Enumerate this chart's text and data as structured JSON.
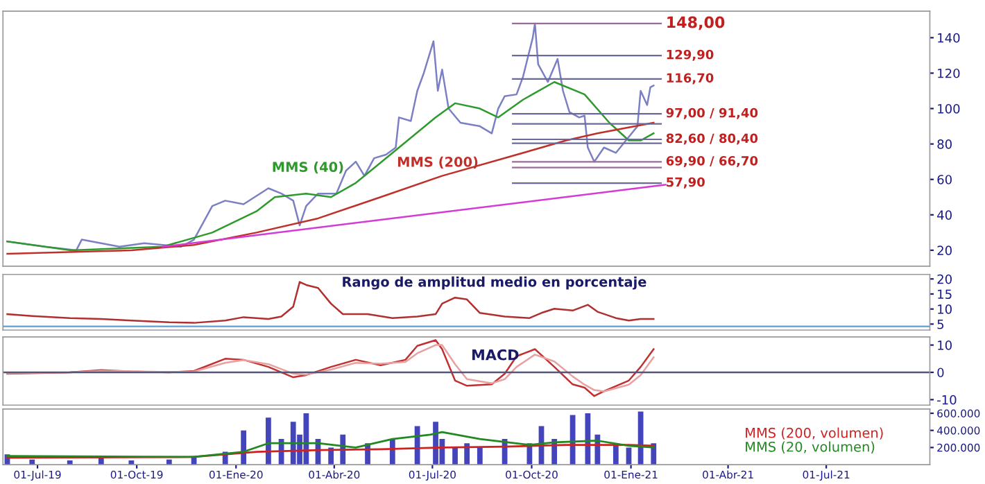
{
  "chart_data": [
    {
      "type": "line",
      "ylim": [
        11,
        155
      ],
      "yticks": [
        20,
        40,
        60,
        80,
        100,
        120,
        140
      ],
      "xlim": [
        "2019-05-30",
        "2021-10-05"
      ],
      "tick_labels": "y",
      "grid": false,
      "legend": false,
      "series": [
        {
          "color": "#7b7fc4",
          "x": [
            "2019-06-03",
            "2019-07-08",
            "2019-08-06",
            "2019-08-11",
            "2019-09-15",
            "2019-10-08",
            "2019-11-11",
            "2019-11-23",
            "2019-12-10",
            "2019-12-22",
            "2020-01-08",
            "2020-01-31",
            "2020-02-12",
            "2020-02-23",
            "2020-02-29",
            "2020-03-06",
            "2020-03-17",
            "2020-04-03",
            "2020-04-12",
            "2020-04-21",
            "2020-04-29",
            "2020-05-08",
            "2020-05-19",
            "2020-05-28",
            "2020-05-31",
            "2020-06-11",
            "2020-06-17",
            "2020-06-23",
            "2020-07-02",
            "2020-07-06",
            "2020-07-10",
            "2020-07-16",
            "2020-07-27",
            "2020-08-14",
            "2020-08-25",
            "2020-08-31",
            "2020-09-06",
            "2020-09-17",
            "2020-09-23",
            "2020-10-02",
            "2020-10-04",
            "2020-10-07",
            "2020-10-16",
            "2020-10-25",
            "2020-10-30",
            "2020-11-05",
            "2020-11-14",
            "2020-11-19",
            "2020-11-22",
            "2020-11-28",
            "2020-12-07",
            "2020-12-18",
            "2020-12-30",
            "2021-01-07",
            "2021-01-10",
            "2021-01-16",
            "2021-01-19",
            "2021-01-22"
          ],
          "values": [
            25,
            22,
            20,
            26,
            22,
            24,
            22,
            26,
            45,
            48,
            46,
            55,
            52,
            48,
            34,
            45,
            52,
            52,
            65,
            70,
            62,
            72,
            74,
            78,
            95,
            93,
            110,
            120,
            138,
            110,
            122,
            100,
            92,
            90,
            86,
            100,
            107,
            108,
            118,
            140,
            148,
            125,
            115,
            128,
            110,
            98,
            95,
            96,
            78,
            70,
            78,
            75,
            84,
            90,
            110,
            102,
            112,
            113
          ]
        },
        {
          "color": "#2e9a2e",
          "x": [
            "2019-06-03",
            "2019-08-01",
            "2019-10-25",
            "2019-12-10",
            "2020-01-20",
            "2020-02-06",
            "2020-03-06",
            "2020-03-29",
            "2020-04-21",
            "2020-05-25",
            "2020-07-04",
            "2020-07-22",
            "2020-08-14",
            "2020-08-31",
            "2020-09-23",
            "2020-10-22",
            "2020-11-19",
            "2020-12-12",
            "2020-12-30",
            "2021-01-10",
            "2021-01-22"
          ],
          "values": [
            25,
            20,
            22,
            30,
            42,
            50,
            52,
            50,
            58,
            75,
            95,
            103,
            100,
            95,
            105,
            115,
            108,
            92,
            82,
            82,
            86
          ]
        },
        {
          "color": "#c0302a",
          "x": [
            "2019-06-03",
            "2019-09-26",
            "2019-11-23",
            "2020-01-20",
            "2020-03-17",
            "2020-05-14",
            "2020-07-10",
            "2020-09-06",
            "2020-11-02",
            "2020-12-01",
            "2021-01-22"
          ],
          "values": [
            18,
            20,
            23,
            30,
            38,
            50,
            62,
            72,
            82,
            86,
            92
          ]
        },
        {
          "color": "#d63ad6",
          "x": [
            "2019-10-25",
            "2021-02-02"
          ],
          "values": [
            22,
            57
          ]
        }
      ],
      "ref_lines": [
        {
          "axis": "y",
          "value": 148,
          "label": "148,00",
          "color": "#9a6a9a"
        },
        {
          "axis": "y",
          "value": 129.9,
          "label": "129,90",
          "color": "#6a6a9a"
        },
        {
          "axis": "y",
          "value": 116.7,
          "label": "116,70",
          "color": "#6a6a9a"
        },
        {
          "axis": "y",
          "value": 97,
          "label": "97,00 / 91,40",
          "color": "#6a6a9a"
        },
        {
          "axis": "y",
          "value": 91.4,
          "label": null,
          "color": "#6a6a9a"
        },
        {
          "axis": "y",
          "value": 82.6,
          "label": "82,60 / 80,40",
          "color": "#6a6a9a"
        },
        {
          "axis": "y",
          "value": 80.4,
          "label": null,
          "color": "#6a6a9a"
        },
        {
          "axis": "y",
          "value": 69.9,
          "label": "69,90 / 66,70",
          "color": "#9a6a9a"
        },
        {
          "axis": "y",
          "value": 66.7,
          "label": null,
          "color": "#9a6a9a"
        },
        {
          "axis": "y",
          "value": 57.9,
          "label": "57,90",
          "color": "#6a6a9a"
        }
      ],
      "annotations": [
        "MMS (40)",
        "MMS (200)"
      ]
    },
    {
      "type": "line",
      "ylim": [
        3,
        21.5
      ],
      "yticks": [
        5,
        10,
        15,
        20
      ],
      "xlim": [
        "2019-05-30",
        "2021-10-05"
      ],
      "tick_labels": "y",
      "grid": false,
      "legend": false,
      "title": "Rango de amplitud medio en porcentaje",
      "series": [
        {
          "color": "#b03030",
          "x": [
            "2019-06-03",
            "2019-06-26",
            "2019-07-31",
            "2019-08-29",
            "2019-09-26",
            "2019-10-31",
            "2019-11-23",
            "2019-12-22",
            "2020-01-08",
            "2020-01-31",
            "2020-02-12",
            "2020-02-23",
            "2020-02-29",
            "2020-03-06",
            "2020-03-17",
            "2020-03-29",
            "2020-04-09",
            "2020-05-02",
            "2020-05-25",
            "2020-06-17",
            "2020-07-04",
            "2020-07-10",
            "2020-07-22",
            "2020-08-02",
            "2020-08-14",
            "2020-09-06",
            "2020-09-29",
            "2020-10-10",
            "2020-10-22",
            "2020-11-08",
            "2020-11-22",
            "2020-12-01",
            "2020-12-18",
            "2020-12-30",
            "2021-01-10",
            "2021-01-22"
          ],
          "values": [
            8.3,
            7.7,
            7,
            6.7,
            6.2,
            5.6,
            5.4,
            6.2,
            7.3,
            6.7,
            7.5,
            10.8,
            19,
            18,
            17,
            11.8,
            8.3,
            8.3,
            7,
            7.5,
            8.3,
            11.8,
            13.8,
            13.2,
            8.7,
            7.5,
            7,
            8.7,
            10.1,
            9.5,
            11.4,
            9.1,
            7,
            6.2,
            6.7,
            6.7
          ]
        }
      ],
      "ref_lines": [
        {
          "axis": "y",
          "value": 4.2,
          "label": null,
          "color": "#66aadd"
        }
      ]
    },
    {
      "type": "line",
      "ylim": [
        -12,
        13
      ],
      "yticks": [
        {
          "value": -10,
          "label": "-10"
        },
        0,
        10
      ],
      "xlim": [
        "2019-05-30",
        "2021-10-05"
      ],
      "tick_labels": "y",
      "grid": false,
      "legend": false,
      "annotations": [
        "MACD"
      ],
      "series": [
        {
          "color": "#c03030",
          "x": [
            "2019-06-03",
            "2019-07-31",
            "2019-08-29",
            "2019-09-26",
            "2019-10-31",
            "2019-11-23",
            "2019-12-22",
            "2020-01-08",
            "2020-01-31",
            "2020-02-23",
            "2020-03-06",
            "2020-03-29",
            "2020-04-21",
            "2020-05-14",
            "2020-06-06",
            "2020-06-17",
            "2020-07-04",
            "2020-07-10",
            "2020-07-22",
            "2020-08-02",
            "2020-08-25",
            "2020-09-06",
            "2020-09-17",
            "2020-10-04",
            "2020-10-22",
            "2020-11-08",
            "2020-11-19",
            "2020-11-28",
            "2020-12-07",
            "2020-12-30",
            "2021-01-10",
            "2021-01-22"
          ],
          "values": [
            -0.5,
            0,
            0.8,
            0.3,
            0,
            0.5,
            5,
            4.6,
            2,
            -1.8,
            -1,
            2,
            4.6,
            2.6,
            4.6,
            9.7,
            11.8,
            8.5,
            -3,
            -4.9,
            -4.4,
            -0.5,
            5.9,
            8.5,
            2,
            -4.4,
            -5.6,
            -8.7,
            -6.9,
            -3,
            2,
            8.5
          ]
        },
        {
          "color": "#e8a0a0",
          "x": [
            "2019-06-03",
            "2019-07-31",
            "2019-08-29",
            "2019-09-26",
            "2019-10-31",
            "2019-11-23",
            "2019-12-22",
            "2020-01-08",
            "2020-01-31",
            "2020-02-23",
            "2020-03-06",
            "2020-03-29",
            "2020-04-21",
            "2020-05-14",
            "2020-06-06",
            "2020-06-17",
            "2020-07-04",
            "2020-07-10",
            "2020-07-22",
            "2020-08-02",
            "2020-08-25",
            "2020-09-06",
            "2020-09-17",
            "2020-10-04",
            "2020-10-22",
            "2020-11-08",
            "2020-11-19",
            "2020-11-28",
            "2020-12-07",
            "2020-12-30",
            "2021-01-10",
            "2021-01-22"
          ],
          "values": [
            -0.3,
            0,
            0.5,
            0.4,
            0.1,
            0.3,
            3.5,
            4.5,
            3,
            -0.5,
            -0.8,
            1,
            3.5,
            3.2,
            3.8,
            7,
            10,
            10,
            3,
            -2.5,
            -4,
            -2.5,
            2,
            6.5,
            4,
            -1.5,
            -4.5,
            -6.5,
            -7,
            -4.5,
            -1,
            5.5
          ]
        }
      ],
      "ref_lines": [
        {
          "axis": "y",
          "value": 0,
          "label": null,
          "color": "#555577"
        }
      ]
    },
    {
      "type": "bar",
      "ylim": [
        0,
        650000
      ],
      "yticks": [
        {
          "value": 200000,
          "label": "200.000"
        },
        {
          "value": 400000,
          "label": "400.000"
        },
        {
          "value": 600000,
          "label": "600.000"
        }
      ],
      "xlim": [
        "2019-05-30",
        "2021-10-05"
      ],
      "xticks": [
        {
          "value": "2019-07-01",
          "label": "01-Jul-19"
        },
        {
          "value": "2019-10-01",
          "label": "01-Oct-19"
        },
        {
          "value": "2020-01-01",
          "label": "01-Ene-20"
        },
        {
          "value": "2020-04-01",
          "label": "01-Abr-20"
        },
        {
          "value": "2020-07-01",
          "label": "01-Jul-20"
        },
        {
          "value": "2020-10-01",
          "label": "01-Oct-20"
        },
        {
          "value": "2021-01-01",
          "label": "01-Ene-21"
        },
        {
          "value": "2021-04-01",
          "label": "01-Abr-21"
        },
        {
          "value": "2021-07-01",
          "label": "01-Jul-21"
        }
      ],
      "grid": false,
      "legend": false,
      "series": [
        {
          "type": "bar",
          "color": "#4444bb",
          "x": [
            "2019-06-03",
            "2019-06-26",
            "2019-07-31",
            "2019-08-29",
            "2019-09-26",
            "2019-10-31",
            "2019-11-23",
            "2019-12-22",
            "2020-01-08",
            "2020-01-31",
            "2020-02-12",
            "2020-02-23",
            "2020-02-29",
            "2020-03-06",
            "2020-03-17",
            "2020-03-29",
            "2020-04-09",
            "2020-05-02",
            "2020-05-25",
            "2020-06-17",
            "2020-07-04",
            "2020-07-10",
            "2020-07-22",
            "2020-08-02",
            "2020-08-14",
            "2020-09-06",
            "2020-09-29",
            "2020-10-10",
            "2020-10-22",
            "2020-11-08",
            "2020-11-22",
            "2020-12-01",
            "2020-12-18",
            "2020-12-30",
            "2021-01-10",
            "2021-01-22"
          ],
          "values": [
            120000,
            60000,
            50000,
            80000,
            50000,
            60000,
            100000,
            150000,
            400000,
            550000,
            300000,
            500000,
            350000,
            600000,
            300000,
            200000,
            350000,
            250000,
            300000,
            450000,
            500000,
            300000,
            200000,
            250000,
            200000,
            300000,
            250000,
            450000,
            300000,
            580000,
            600000,
            350000,
            250000,
            200000,
            620000,
            250000
          ]
        },
        {
          "type": "line",
          "name": "MMS (200, volumen)",
          "color": "#cc2222",
          "x": [
            "2019-06-03",
            "2019-11-23",
            "2020-01-20",
            "2020-03-17",
            "2020-05-14",
            "2020-07-10",
            "2020-09-06",
            "2020-11-02",
            "2020-12-30",
            "2021-01-22"
          ],
          "values": [
            80000,
            90000,
            150000,
            170000,
            180000,
            200000,
            210000,
            230000,
            230000,
            220000
          ]
        },
        {
          "type": "line",
          "name": "MMS (20, volumen)",
          "color": "#228822",
          "x": [
            "2019-06-03",
            "2019-11-23",
            "2020-01-08",
            "2020-01-31",
            "2020-03-17",
            "2020-04-21",
            "2020-05-25",
            "2020-06-29",
            "2020-07-10",
            "2020-08-14",
            "2020-09-29",
            "2020-10-22",
            "2020-12-01",
            "2020-12-30",
            "2021-01-22"
          ],
          "values": [
            100000,
            90000,
            150000,
            250000,
            250000,
            200000,
            300000,
            350000,
            380000,
            300000,
            230000,
            260000,
            280000,
            220000,
            200000
          ]
        }
      ]
    }
  ]
}
